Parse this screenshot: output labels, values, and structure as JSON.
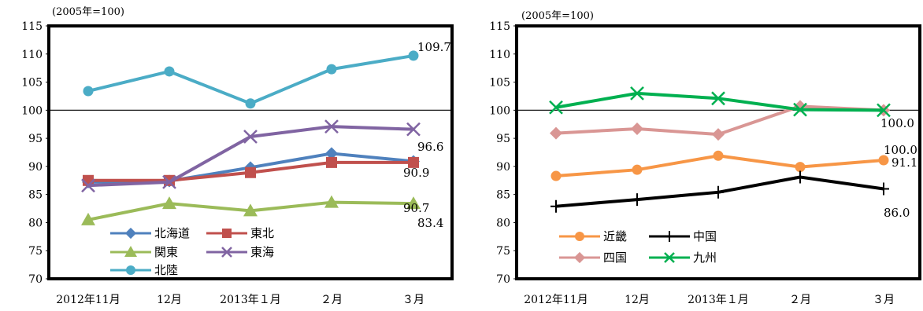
{
  "chart_data": [
    {
      "type": "line",
      "unit_label": "(2005年=100)",
      "categories": [
        "2012年11月",
        "12月",
        "2013年１月",
        "２月",
        "３月"
      ],
      "ylim": [
        70,
        115
      ],
      "yticks": [
        70,
        75,
        80,
        85,
        90,
        95,
        100,
        105,
        110,
        115
      ],
      "reference_line": 100,
      "series": [
        {
          "name": "北海道",
          "color": "#4f81bd",
          "marker": "diamond",
          "values": [
            87.2,
            87.4,
            89.8,
            92.3,
            90.9
          ]
        },
        {
          "name": "東北",
          "color": "#c0504d",
          "marker": "square",
          "values": [
            87.5,
            87.5,
            88.9,
            90.7,
            90.7
          ]
        },
        {
          "name": "関東",
          "color": "#9bbb59",
          "marker": "triangle",
          "values": [
            80.5,
            83.4,
            82.1,
            83.6,
            83.4
          ]
        },
        {
          "name": "東海",
          "color": "#8064a2",
          "marker": "x",
          "values": [
            86.6,
            87.2,
            95.3,
            97.1,
            96.6
          ]
        },
        {
          "name": "北陸",
          "color": "#4bacc6",
          "marker": "circle",
          "values": [
            103.4,
            106.9,
            101.2,
            107.3,
            109.7
          ]
        }
      ],
      "data_labels": [
        "109.7",
        "96.6",
        "90.9",
        "90.7",
        "83.4"
      ],
      "legend_items": [
        "北海道",
        "東北",
        "関東",
        "東海",
        "北陸"
      ]
    },
    {
      "type": "line",
      "unit_label": "(2005年=100)",
      "categories": [
        "2012年11月",
        "12月",
        "2013年１月",
        "２月",
        "３月"
      ],
      "ylim": [
        70,
        115
      ],
      "yticks": [
        70,
        75,
        80,
        85,
        90,
        95,
        100,
        105,
        110,
        115
      ],
      "reference_line": 100,
      "series": [
        {
          "name": "近畿",
          "color": "#f79646",
          "marker": "circle",
          "values": [
            88.3,
            89.4,
            91.9,
            89.9,
            91.1
          ]
        },
        {
          "name": "中国",
          "color": "#000000",
          "marker": "plus",
          "values": [
            82.9,
            84.1,
            85.4,
            88.1,
            86.0
          ]
        },
        {
          "name": "四国",
          "color": "#d99694",
          "marker": "diamond",
          "values": [
            95.9,
            96.7,
            95.7,
            100.7,
            100.0
          ]
        },
        {
          "name": "九州",
          "color": "#00b050",
          "marker": "x",
          "values": [
            100.5,
            103.0,
            102.1,
            100.1,
            100.0
          ]
        }
      ],
      "data_labels": [
        "100.0",
        "100.0",
        "91.1",
        "86.0"
      ],
      "legend_items": [
        "近畿",
        "中国",
        "四国",
        "九州"
      ]
    }
  ]
}
